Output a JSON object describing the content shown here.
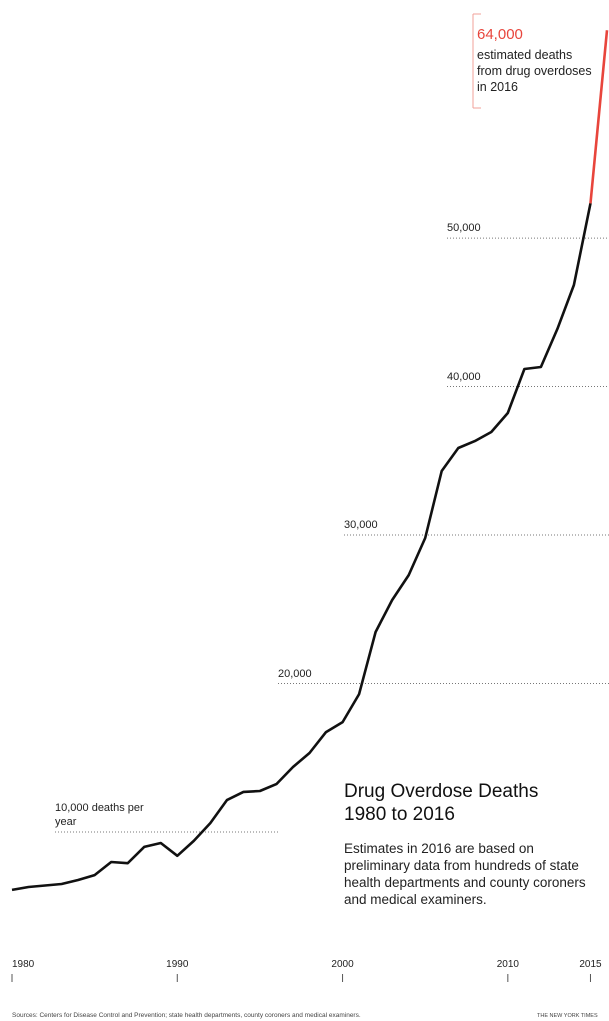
{
  "chart_data": {
    "type": "line",
    "title": "Drug Overdose Deaths 1980 to 2016",
    "subtitle": "Estimates in 2016 are based on preliminary data from hundreds of state health departments and county coroners and medical examiners.",
    "annotation": "estimated deaths from drug overdoses in 2016",
    "source": "Sources: Centers for Disease Control and Prevention; state health departments, county coroners and medical examiners.",
    "credit": "THE NEW YORK TIMES",
    "x": [
      1980,
      1981,
      1982,
      1983,
      1984,
      1985,
      1986,
      1987,
      1988,
      1989,
      1990,
      1991,
      1992,
      1993,
      1994,
      1995,
      1996,
      1997,
      1998,
      1999,
      2000,
      2001,
      2002,
      2003,
      2004,
      2005,
      2006,
      2007,
      2008,
      2009,
      2010,
      2011,
      2012,
      2013,
      2014,
      2015,
      2016
    ],
    "values": [
      6100,
      6300,
      6400,
      6500,
      6770,
      7100,
      7980,
      7900,
      9000,
      9260,
      8400,
      9400,
      10600,
      12150,
      12700,
      12760,
      13230,
      14380,
      15320,
      16730,
      17400,
      19290,
      23470,
      25620,
      27300,
      29800,
      34310,
      35860,
      36330,
      36940,
      38220,
      41180,
      41320,
      43880,
      46840,
      52340,
      64000
    ],
    "value_labels": [
      null,
      null,
      null,
      null,
      null,
      null,
      null,
      null,
      null,
      null,
      null,
      null,
      null,
      null,
      null,
      null,
      null,
      null,
      null,
      null,
      null,
      null,
      null,
      null,
      null,
      null,
      null,
      null,
      null,
      null,
      null,
      null,
      null,
      null,
      null,
      null,
      "64,000"
    ],
    "color": "#111111",
    "highlight_color": "#e8453c",
    "xlim": [
      1980,
      2016
    ],
    "xticks": [
      1980,
      1990,
      2000,
      2010,
      2015
    ],
    "ylim": [
      0,
      66000
    ],
    "yticks": [
      {
        "value": 10000,
        "label": "10,000 deaths per year"
      },
      {
        "value": 20000,
        "label": "20,000"
      },
      {
        "value": 30000,
        "label": "30,000"
      },
      {
        "value": 40000,
        "label": "40,000"
      },
      {
        "value": 50000,
        "label": "50,000"
      }
    ],
    "grid": true
  }
}
